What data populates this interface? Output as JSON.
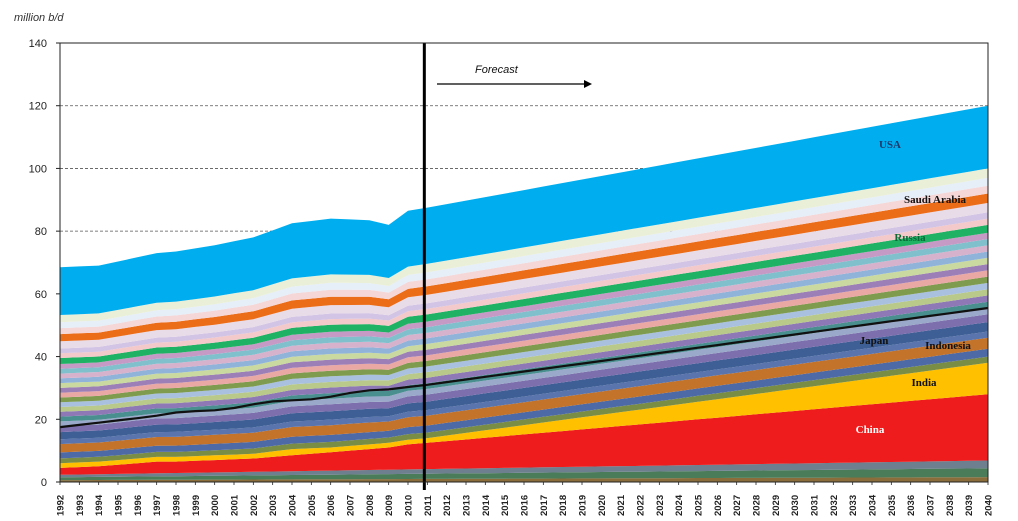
{
  "chart_data": {
    "type": "area",
    "stacked": true,
    "ylabel": "million b/d",
    "ylim": [
      0,
      140
    ],
    "yticks": [
      0,
      20,
      40,
      60,
      80,
      100,
      120,
      140
    ],
    "grid": "dashed horizontal at 80, 100, 120",
    "x": [
      "1992",
      "1993",
      "1994",
      "1995",
      "1996",
      "1997",
      "1998",
      "1999",
      "2000",
      "2001",
      "2002",
      "2003",
      "2004",
      "2005",
      "2006",
      "2007",
      "2008",
      "2009",
      "2010",
      "2011",
      "2012",
      "2013",
      "2014",
      "2015",
      "2016",
      "2017",
      "2018",
      "2019",
      "2020",
      "2021",
      "2022",
      "2023",
      "2024",
      "2025",
      "2026",
      "2027",
      "2028",
      "2029",
      "2030",
      "2031",
      "2032",
      "2033",
      "2034",
      "2035",
      "2036",
      "2037",
      "2038",
      "2039",
      "2040"
    ],
    "divider_year": "2011",
    "forecast_label": "Forecast",
    "oecd_total_line": {
      "years": [
        "1992",
        "2011",
        "2040"
      ],
      "values": [
        17.5,
        31,
        55.5
      ]
    },
    "anchors": {
      "years": [
        "1992",
        "1994",
        "1997",
        "1998",
        "2000",
        "2002",
        "2004",
        "2006",
        "2008",
        "2009",
        "2010",
        "2011",
        "2040"
      ],
      "china_top": [
        4.5,
        5,
        6.5,
        6.5,
        7,
        7.5,
        8.5,
        9.5,
        10.5,
        11,
        12,
        12.5,
        28
      ],
      "india_top": [
        6,
        6.5,
        8,
        8,
        8.5,
        9,
        10.5,
        11,
        12,
        12.5,
        13.5,
        14,
        38
      ],
      "total_top": [
        68.5,
        69,
        73,
        73.5,
        75.5,
        78,
        82.5,
        84,
        83.5,
        82,
        86.5,
        87.5,
        120
      ]
    },
    "series": [
      {
        "name": "China",
        "values_2040": 28,
        "color": "#ee1c1c"
      },
      {
        "name": "India",
        "values_2040": 10,
        "color": "#ffc000"
      },
      {
        "name": "Indonesia",
        "values_2040": 4,
        "color": "#c0651d"
      },
      {
        "name": "Japan",
        "values_2040": 4,
        "color": "#3b5a97"
      },
      {
        "name": "Russia",
        "values_2040": 3,
        "color": "#1fb264"
      },
      {
        "name": "Saudi Arabia",
        "values_2040": 3,
        "color": "#ec6d18"
      },
      {
        "name": "USA",
        "values_2040": 20,
        "color": "#00aeef"
      }
    ]
  }
}
